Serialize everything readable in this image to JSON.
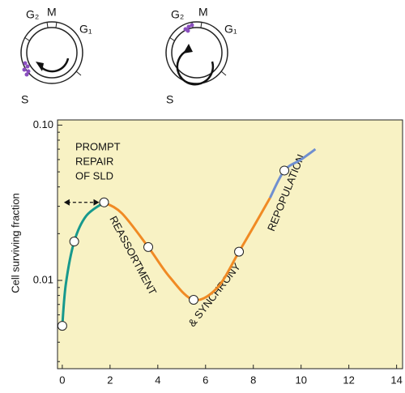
{
  "cell_cycle_diagrams": [
    {
      "labels": [
        "G₂",
        "M",
        "G₁",
        "S"
      ]
    },
    {
      "labels": [
        "G₂",
        "M",
        "G₁",
        "S"
      ]
    }
  ],
  "chart_data": {
    "type": "line",
    "log_y": true,
    "ylabel": "Cell surviving fraction",
    "annotations": [
      "PROMPT",
      "REPAIR",
      "OF SLD",
      "REASSORTMENT",
      "& SYNCHRONY",
      "REPOPULATION"
    ],
    "xlim": [
      -0.2,
      14.25
    ],
    "xticks": [
      0,
      2,
      4,
      6,
      8,
      10,
      12,
      14
    ],
    "ylim": [
      0.0027,
      0.108
    ],
    "yticks": [
      {
        "value": 0.1,
        "label": "0.10"
      },
      0.01
    ],
    "background": "#f8f2c4",
    "series": [
      {
        "color": "#17998d",
        "x": [
          0,
          0.15,
          0.5,
          1.0,
          1.75
        ],
        "values": [
          0.0051,
          0.0095,
          0.0178,
          0.026,
          0.0318
        ]
      },
      {
        "color": "#f08a24",
        "x": [
          1.75,
          2.5,
          3.6,
          4.5,
          5.5,
          6.5,
          7.4,
          8.0,
          8.7
        ],
        "values": [
          0.0318,
          0.027,
          0.0164,
          0.0105,
          0.0075,
          0.009,
          0.0153,
          0.022,
          0.034
        ]
      },
      {
        "color": "#6f8fd0",
        "x": [
          8.7,
          9.3,
          10.0,
          10.6
        ],
        "values": [
          0.034,
          0.051,
          0.06,
          0.07
        ]
      }
    ],
    "points": {
      "color": "#ffffff",
      "x": [
        0,
        0.5,
        1.75,
        3.6,
        5.5,
        7.4,
        9.3
      ],
      "values": [
        0.0051,
        0.0178,
        0.0318,
        0.0164,
        0.0075,
        0.0153,
        0.051
      ]
    }
  }
}
